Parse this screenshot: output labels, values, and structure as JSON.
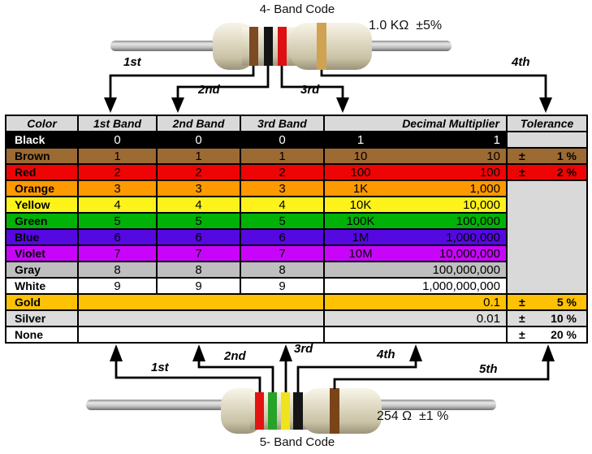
{
  "top_section": {
    "title": "4- Band Code",
    "value": "1.0 KΩ  ±5%",
    "arrows": [
      "1st",
      "2nd",
      "3rd",
      "4th"
    ]
  },
  "bottom_section": {
    "title": "5- Band Code",
    "value": "254 Ω  ±1 %",
    "arrows": [
      "1st",
      "2nd",
      "3rd",
      "4th",
      "5th"
    ]
  },
  "colors": {
    "top_bands": {
      "first": "#7c4a23",
      "second": "#141414",
      "third": "#dd1111",
      "fourth": "#cfa352"
    },
    "bottom_bands": {
      "first": "#e51212",
      "second": "#28a228",
      "third": "#efe41c",
      "fourth": "#151515",
      "fifth": "#7a4418"
    },
    "table_header_bg": "#d9d9d9",
    "empty_tolerance_bg": "#d9d9d9"
  },
  "table": {
    "headers": [
      "Color",
      "1st Band",
      "2nd Band",
      "3rd Band",
      "Decimal Multiplier",
      "Tolerance"
    ],
    "rows": [
      {
        "name": "Black",
        "bg": "#000000",
        "fg": "#ffffff",
        "b1": "0",
        "b2": "0",
        "b3": "0",
        "ms": "1",
        "ml": "1",
        "tol_kind": "gray"
      },
      {
        "name": "Brown",
        "bg": "#9c6a33",
        "b1": "1",
        "b2": "1",
        "b3": "1",
        "ms": "10",
        "ml": "10",
        "tol_kind": "labeled",
        "tol_sign": "±",
        "tol_value": "1 %"
      },
      {
        "name": "Red",
        "bg": "#ee0404",
        "b1": "2",
        "b2": "2",
        "b3": "2",
        "ms": "100",
        "ml": "100",
        "tol_kind": "labeled",
        "tol_sign": "±",
        "tol_value": "2 %"
      },
      {
        "name": "Orange",
        "bg": "#ff9900",
        "b1": "3",
        "b2": "3",
        "b3": "3",
        "ms": "1K",
        "ml": "1,000",
        "tol_kind": "merged_gray"
      },
      {
        "name": "Yellow",
        "bg": "#fdf31b",
        "b1": "4",
        "b2": "4",
        "b3": "4",
        "ms": "10K",
        "ml": "10,000"
      },
      {
        "name": "Green",
        "bg": "#00b208",
        "b1": "5",
        "b2": "5",
        "b3": "5",
        "ms": "100K",
        "ml": "100,000"
      },
      {
        "name": "Blue",
        "bg": "#5508e0",
        "b1": "6",
        "b2": "6",
        "b3": "6",
        "ms": "1M",
        "ml": "1,000,000"
      },
      {
        "name": "Violet",
        "bg": "#c805fa",
        "b1": "7",
        "b2": "7",
        "b3": "7",
        "ms": "10M",
        "ml": "10,000,000"
      },
      {
        "name": "Gray",
        "bg": "#bfbfbf",
        "b1": "8",
        "b2": "8",
        "b3": "8",
        "ms": "",
        "ml": "100,000,000"
      },
      {
        "name": "White",
        "bg": "#ffffff",
        "b1": "9",
        "b2": "9",
        "b3": "9",
        "ms": "",
        "ml": "1,000,000,000"
      },
      {
        "name": "Gold",
        "bg": "#fec104",
        "merged_bands": true,
        "ms": "",
        "ml": "0.1",
        "tol_kind": "labeled",
        "tol_sign": "±",
        "tol_value": "5 %"
      },
      {
        "name": "Silver",
        "bg": "#dcdcdc",
        "merged_bands": true,
        "ms": "",
        "ml": "0.01",
        "tol_kind": "labeled",
        "tol_sign": "±",
        "tol_value": "10 %"
      },
      {
        "name": "None",
        "bg": "#ffffff",
        "merged_bands": true,
        "ms": "",
        "ml": "",
        "tol_kind": "labeled",
        "tol_sign": "±",
        "tol_value": "20 %"
      }
    ]
  }
}
